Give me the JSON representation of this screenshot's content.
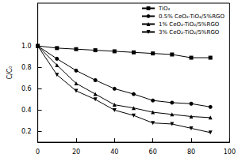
{
  "chart_data": {
    "type": "line",
    "y_label": "C/C₀",
    "xlim": [
      0,
      100
    ],
    "xticks": [
      0,
      20,
      40,
      60,
      80,
      100
    ],
    "ylim": [
      0.1,
      1.4
    ],
    "yticks": [
      0.2,
      0.4,
      0.6,
      0.8,
      {
        "value": 1.0,
        "label": "1.0"
      }
    ],
    "legend": "upper right",
    "grid": false,
    "series": [
      {
        "name": "TiO₂",
        "color": "#000000",
        "marker": "square",
        "x": [
          0,
          10,
          20,
          30,
          40,
          50,
          60,
          70,
          80,
          90
        ],
        "values": [
          1.0,
          0.98,
          0.97,
          0.96,
          0.95,
          0.94,
          0.93,
          0.92,
          0.89,
          0.89
        ]
      },
      {
        "name": "0.5% CeO₂-TiO₂/5%RGO",
        "color": "#000000",
        "marker": "circle",
        "x": [
          0,
          10,
          20,
          30,
          40,
          50,
          60,
          70,
          80,
          90
        ],
        "values": [
          1.0,
          0.88,
          0.77,
          0.68,
          0.6,
          0.55,
          0.49,
          0.47,
          0.46,
          0.43
        ]
      },
      {
        "name": "1% CeO₂-TiO₂/5%RGO",
        "color": "#000000",
        "marker": "triangle",
        "x": [
          0,
          10,
          20,
          30,
          40,
          50,
          60,
          70,
          80,
          90
        ],
        "values": [
          1.0,
          0.82,
          0.65,
          0.55,
          0.45,
          0.42,
          0.38,
          0.36,
          0.34,
          0.33
        ]
      },
      {
        "name": "3% CeO₂-TiO₂/5%RGO",
        "color": "#000000",
        "marker": "triangle-down",
        "x": [
          0,
          10,
          20,
          30,
          40,
          50,
          60,
          70,
          80,
          90
        ],
        "values": [
          1.0,
          0.73,
          0.58,
          0.5,
          0.4,
          0.35,
          0.28,
          0.27,
          0.23,
          0.19
        ]
      }
    ]
  }
}
